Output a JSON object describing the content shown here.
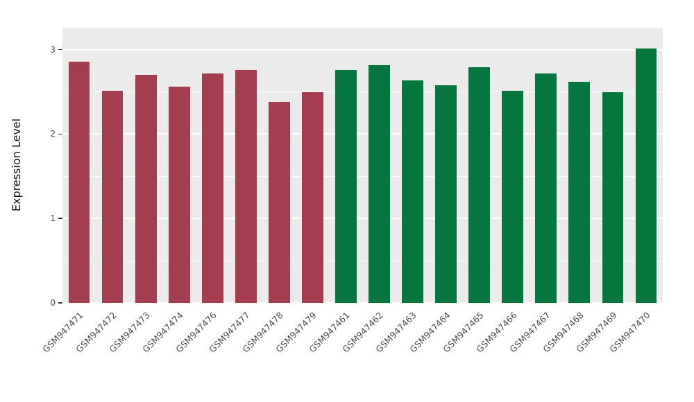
{
  "chart_data": {
    "type": "bar",
    "title": "",
    "xlabel": "",
    "ylabel": "Expression Level",
    "categories": [
      "GSM947471",
      "GSM947472",
      "GSM947473",
      "GSM947474",
      "GSM947476",
      "GSM947477",
      "GSM947478",
      "GSM947479",
      "GSM947461",
      "GSM947462",
      "GSM947463",
      "GSM947464",
      "GSM947465",
      "GSM947466",
      "GSM947467",
      "GSM947468",
      "GSM947469",
      "GSM947470"
    ],
    "values": [
      2.86,
      2.51,
      2.7,
      2.56,
      2.72,
      2.76,
      2.38,
      2.5,
      2.76,
      2.82,
      2.64,
      2.58,
      2.79,
      2.51,
      2.72,
      2.62,
      2.5,
      3.01
    ],
    "bar_groups": [
      "red",
      "red",
      "red",
      "red",
      "red",
      "red",
      "red",
      "red",
      "green",
      "green",
      "green",
      "green",
      "green",
      "green",
      "green",
      "green",
      "green",
      "green"
    ],
    "group_colors": {
      "red": "#A33D4F",
      "green": "#04763E"
    },
    "ylim": [
      0,
      3.26
    ],
    "yticks": [
      "0",
      "1",
      "2",
      "3"
    ],
    "ytick_values": [
      0,
      1,
      2,
      3
    ],
    "yminor_values": [
      0.5,
      1.5,
      2.5
    ],
    "grid": true,
    "legend": "none",
    "panel_background": "#EBEBEB",
    "gridline_color": "#FFFFFF",
    "axis_text_color": "#4D4D4D"
  }
}
